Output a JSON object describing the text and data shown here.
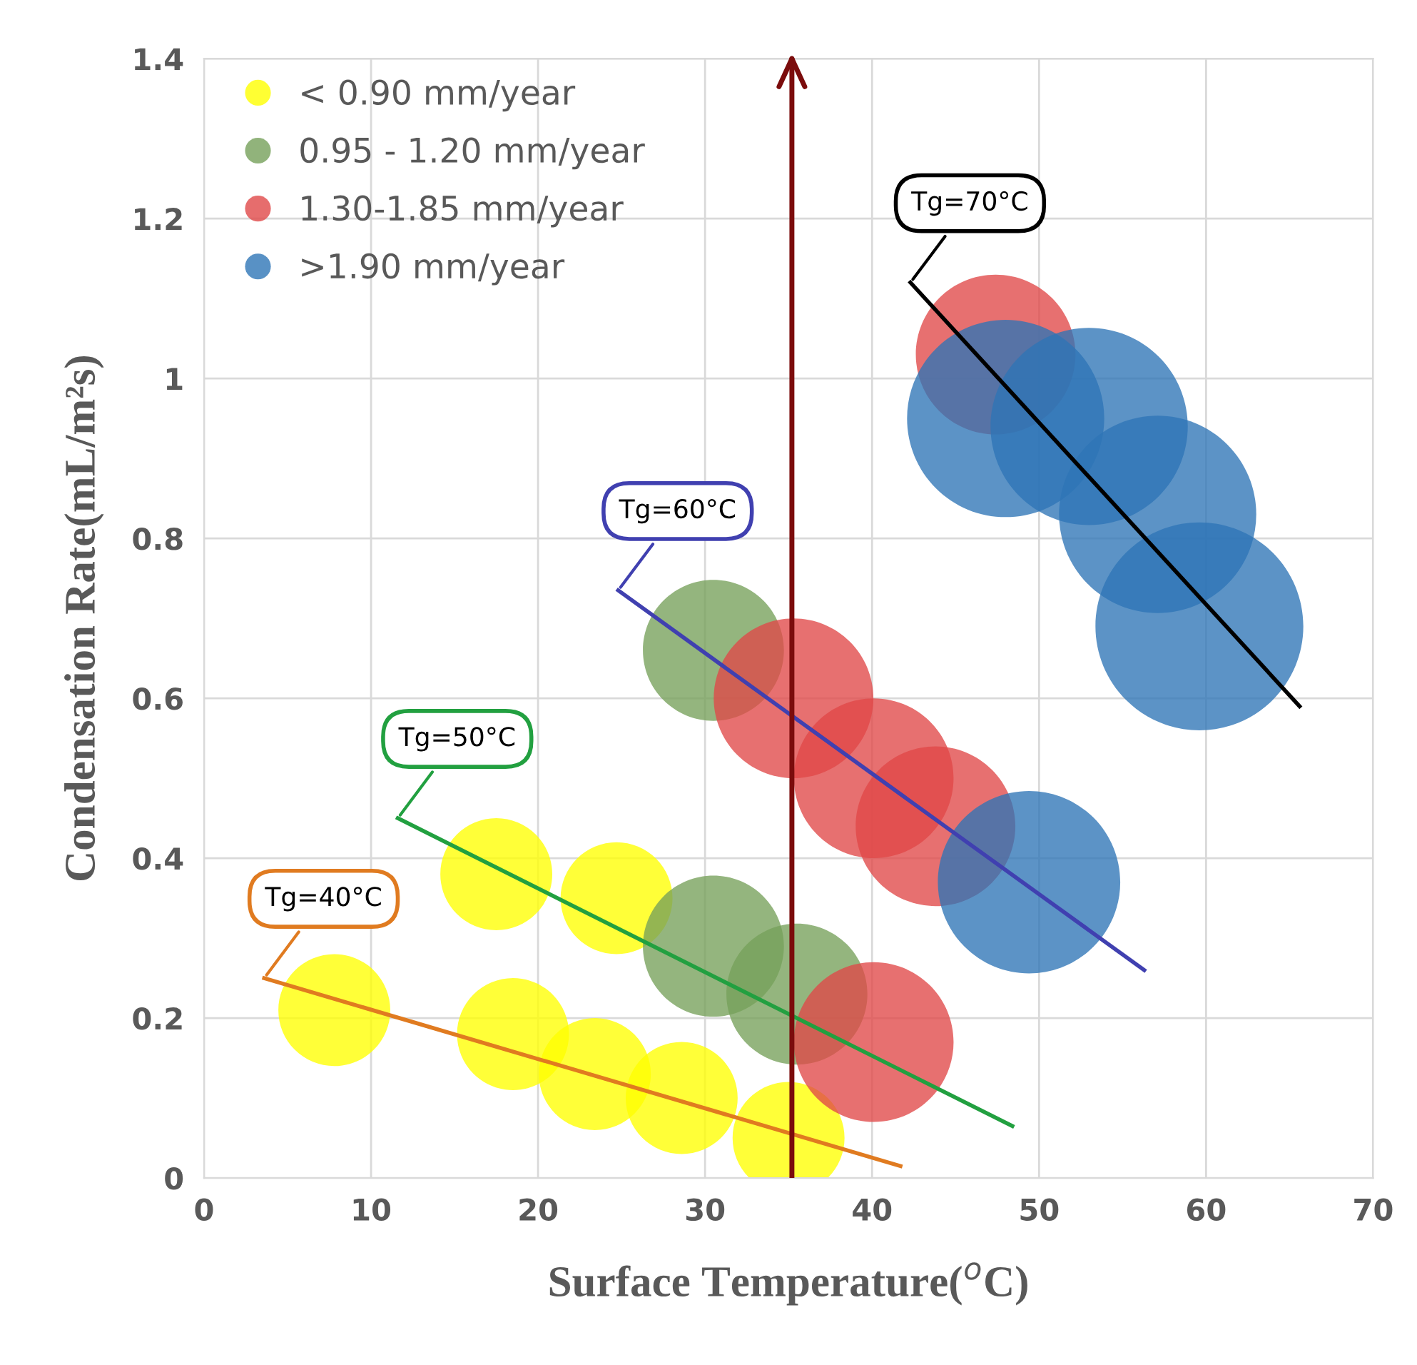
{
  "chart_data": {
    "type": "bubble",
    "xlabel": "Surface Temperature($^{o}$C)",
    "ylabel": "Condensation Rate(mL/m²s)",
    "xlim": [
      0,
      70
    ],
    "xticks": [
      0,
      10,
      20,
      30,
      40,
      50,
      60,
      70
    ],
    "ylim": [
      0,
      1.4
    ],
    "yticks": [
      0,
      0.2,
      0.4,
      0.6,
      0.8,
      1,
      1.2,
      1.4
    ],
    "grid": true,
    "legend": "top left",
    "series": [
      {
        "name": "< 0.90 mm/year",
        "color": "#ffff00",
        "x": [
          7.8,
          17.5,
          24.7,
          18.5,
          23.4,
          28.6,
          35
        ],
        "values": [
          0.21,
          0.38,
          0.35,
          0.18,
          0.13,
          0.1,
          0.05
        ],
        "sizes": [
          0.29,
          0.29,
          0.29,
          0.29,
          0.29,
          0.29,
          0.29
        ]
      },
      {
        "name": "0.95 - 1.20 mm/year",
        "color": "#76a05a",
        "x": [
          30.5,
          35.5,
          30.5
        ],
        "values": [
          0.29,
          0.23,
          0.66
        ],
        "sizes": [
          0.46,
          0.46,
          0.46
        ]
      },
      {
        "name": "1.30-1.85 mm/year",
        "color": "#e04848",
        "x": [
          40.1,
          35.3,
          40.1,
          43.8,
          47.4
        ],
        "values": [
          0.17,
          0.6,
          0.5,
          0.44,
          1.03
        ],
        "sizes": [
          0.59,
          0.59,
          0.59,
          0.59,
          0.59
        ]
      },
      {
        "name": ">1.90 mm/year",
        "color": "#2e75b6",
        "x": [
          49.4,
          48,
          53,
          57.1,
          59.6
        ],
        "values": [
          0.37,
          0.95,
          0.94,
          0.83,
          0.69
        ],
        "sizes": [
          0.77,
          0.9,
          0.9,
          0.9,
          1
        ]
      },
      {
        "type": "line",
        "color": "#e07b20",
        "x": [
          3.6,
          41.7
        ],
        "values": [
          0.25,
          0.015
        ]
      },
      {
        "type": "line",
        "color": "#22a040",
        "x": [
          11.6,
          48.4
        ],
        "values": [
          0.45,
          0.065
        ]
      },
      {
        "type": "line",
        "color": "#4040b0",
        "x": [
          24.8,
          56.3
        ],
        "values": [
          0.735,
          0.26
        ]
      },
      {
        "type": "line",
        "color": "#000000",
        "x": [
          42.3,
          65.6
        ],
        "values": [
          1.12,
          0.59
        ]
      }
    ],
    "ref_lines": [
      {
        "axis": "x",
        "value": 35.2,
        "color": "#7b0c0c"
      }
    ],
    "annotations": [
      {
        "text": "Tg=40°C",
        "x": 3.6,
        "y": 0.25
      },
      {
        "text": "Tg=50°C",
        "x": 11.6,
        "y": 0.45
      },
      {
        "text": "Tg=60°C",
        "x": 24.8,
        "y": 0.735
      },
      {
        "text": "Tg=70°C",
        "x": 42.3,
        "y": 1.12
      }
    ]
  }
}
